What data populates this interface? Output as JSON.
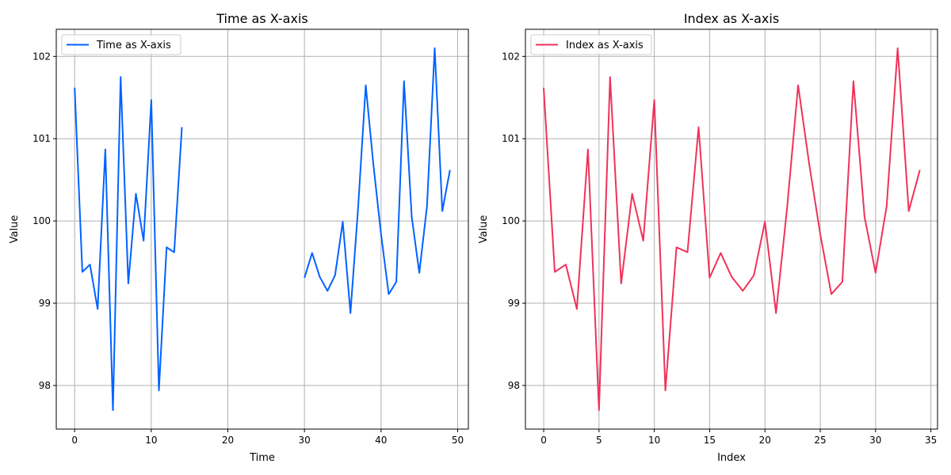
{
  "chart_data": [
    {
      "type": "line",
      "title": "Time as X-axis",
      "xlabel": "Time",
      "ylabel": "Value",
      "xlim": [
        -2.4,
        51.4
      ],
      "ylim": [
        97.47,
        102.33
      ],
      "xticks": [
        0,
        10,
        20,
        30,
        40,
        50
      ],
      "yticks": [
        98,
        99,
        100,
        101,
        102
      ],
      "grid": true,
      "legend": "top-left",
      "series": [
        {
          "name": "Time as X-axis",
          "color": "#0062ff",
          "x": [
            0,
            1,
            2,
            3,
            4,
            5,
            6,
            7,
            8,
            9,
            10,
            11,
            12,
            13,
            14,
            15,
            16,
            17,
            18,
            19,
            20,
            21,
            22,
            23,
            24,
            25,
            26,
            27,
            28,
            29,
            30,
            31,
            32,
            33,
            34,
            35,
            36,
            37,
            38,
            39,
            40,
            41,
            42,
            43,
            44,
            45,
            46,
            47,
            48,
            49
          ],
          "y": [
            101.62,
            99.38,
            99.47,
            98.93,
            100.87,
            97.7,
            101.75,
            99.24,
            100.33,
            99.76,
            101.47,
            97.94,
            99.68,
            99.62,
            101.14,
            null,
            null,
            null,
            null,
            null,
            null,
            null,
            null,
            null,
            null,
            null,
            null,
            null,
            null,
            null,
            99.31,
            99.61,
            99.32,
            99.15,
            99.34,
            99.99,
            98.88,
            100.15,
            101.65,
            100.69,
            99.84,
            99.11,
            99.26,
            101.7,
            100.05,
            99.37,
            100.18,
            102.1,
            100.12,
            100.62
          ]
        }
      ]
    },
    {
      "type": "line",
      "title": "Index as X-axis",
      "xlabel": "Index",
      "ylabel": "Value",
      "xlim": [
        -1.65,
        35.6
      ],
      "ylim": [
        97.47,
        102.33
      ],
      "xticks": [
        0,
        5,
        10,
        15,
        20,
        25,
        30,
        35
      ],
      "yticks": [
        98,
        99,
        100,
        101,
        102
      ],
      "grid": true,
      "legend": "top-left",
      "series": [
        {
          "name": "Index as X-axis",
          "color": "#f0325a",
          "x": [
            0,
            1,
            2,
            3,
            4,
            5,
            6,
            7,
            8,
            9,
            10,
            11,
            12,
            13,
            14,
            15,
            16,
            17,
            18,
            19,
            20,
            21,
            22,
            23,
            24,
            25,
            26,
            27,
            28,
            29,
            30,
            31,
            32,
            33,
            34
          ],
          "y": [
            101.62,
            99.38,
            99.47,
            98.93,
            100.87,
            97.7,
            101.75,
            99.24,
            100.33,
            99.76,
            101.47,
            97.94,
            99.68,
            99.62,
            101.14,
            99.31,
            99.61,
            99.32,
            99.15,
            99.34,
            99.99,
            98.88,
            100.15,
            101.65,
            100.69,
            99.84,
            99.11,
            99.26,
            101.7,
            100.05,
            99.37,
            100.18,
            102.1,
            100.12,
            100.62
          ]
        }
      ]
    }
  ]
}
